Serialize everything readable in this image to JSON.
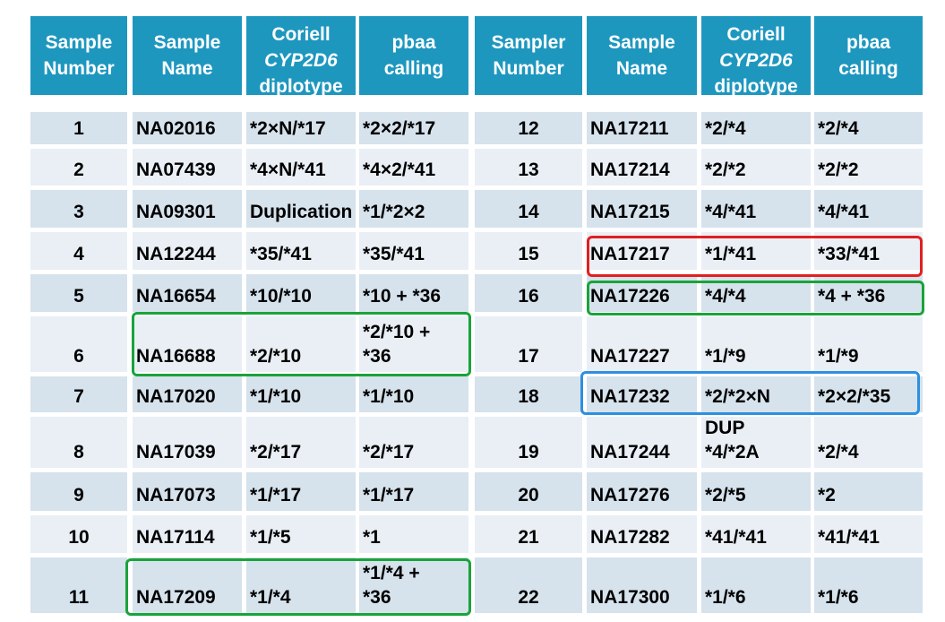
{
  "headers": [
    {
      "line1": "Sample",
      "line2": "Number",
      "line3": ""
    },
    {
      "line1": "Sample",
      "line2": "Name",
      "line3": ""
    },
    {
      "line1": "Coriell",
      "line2": "CYP2D6",
      "line3": "diplotype"
    },
    {
      "line1": "pbaa",
      "line2": "calling",
      "line3": ""
    },
    {
      "line1": "Sampler",
      "line2": "Number",
      "line3": ""
    },
    {
      "line1": "Sample",
      "line2": "Name",
      "line3": ""
    },
    {
      "line1": "Coriell",
      "line2": "CYP2D6",
      "line3": "diplotype"
    },
    {
      "line1": "pbaa",
      "line2": "calling",
      "line3": ""
    }
  ],
  "left_rows": [
    {
      "number": "1",
      "name": "NA02016",
      "coriell": "*2×N/*17",
      "pbaa": "*2×2/*17"
    },
    {
      "number": "2",
      "name": "NA07439",
      "coriell": "*4×N/*41",
      "pbaa": "*4×2/*41"
    },
    {
      "number": "3",
      "name": "NA09301",
      "coriell": "Duplication",
      "pbaa": "*1/*2×2"
    },
    {
      "number": "4",
      "name": "NA12244",
      "coriell": "*35/*41",
      "pbaa": "*35/*41"
    },
    {
      "number": "5",
      "name": "NA16654",
      "coriell": "*10/*10",
      "pbaa": "*10 + *36"
    },
    {
      "number": "6",
      "name": "NA16688",
      "coriell": "*2/*10",
      "pbaa": "*2/*10 +\n*36"
    },
    {
      "number": "7",
      "name": "NA17020",
      "coriell": "*1/*10",
      "pbaa": "*1/*10"
    },
    {
      "number": "8",
      "name": "NA17039",
      "coriell": "*2/*17",
      "pbaa": "*2/*17"
    },
    {
      "number": "9",
      "name": "NA17073",
      "coriell": "*1/*17",
      "pbaa": "*1/*17"
    },
    {
      "number": "10",
      "name": "NA17114",
      "coriell": "*1/*5",
      "pbaa": "*1"
    },
    {
      "number": "11",
      "name": "NA17209",
      "coriell": "*1/*4",
      "pbaa": "*1/*4 +\n*36"
    }
  ],
  "right_rows": [
    {
      "number": "12",
      "name": "NA17211",
      "coriell": "*2/*4",
      "pbaa": "*2/*4"
    },
    {
      "number": "13",
      "name": "NA17214",
      "coriell": "*2/*2",
      "pbaa": "*2/*2"
    },
    {
      "number": "14",
      "name": "NA17215",
      "coriell": "*4/*41",
      "pbaa": "*4/*41"
    },
    {
      "number": "15",
      "name": "NA17217",
      "coriell": "*1/*41",
      "pbaa": "*33/*41"
    },
    {
      "number": "16",
      "name": "NA17226",
      "coriell": "*4/*4",
      "pbaa": "*4 + *36"
    },
    {
      "number": "17",
      "name": "NA17227",
      "coriell": "*1/*9",
      "pbaa": "*1/*9"
    },
    {
      "number": "18",
      "name": "NA17232",
      "coriell": "*2/*2×N",
      "pbaa": "*2×2/*35"
    },
    {
      "number": "19",
      "name": "NA17244",
      "coriell": "DUP\n*4/*2A",
      "pbaa": "*2/*4"
    },
    {
      "number": "20",
      "name": "NA17276",
      "coriell": "*2/*5",
      "pbaa": "*2"
    },
    {
      "number": "21",
      "name": "NA17282",
      "coriell": "*41/*41",
      "pbaa": "*41/*41"
    },
    {
      "number": "22",
      "name": "NA17300",
      "coriell": "*1/*6",
      "pbaa": "*1/*6"
    }
  ],
  "highlights": [
    {
      "color": "#1AA33A",
      "target": "left row 6 name–pbaa"
    },
    {
      "color": "#1AA33A",
      "target": "left row 11 name–pbaa"
    },
    {
      "color": "#E02020",
      "target": "right row 15 name–pbaa"
    },
    {
      "color": "#1AA33A",
      "target": "right row 16 name–pbaa"
    },
    {
      "color": "#2E8FE0",
      "target": "right row 18 name–pbaa"
    }
  ],
  "colors": {
    "header_bg": "#1E97BF",
    "row_dark": "#D6E2EC",
    "row_light": "#E9EFF5"
  }
}
